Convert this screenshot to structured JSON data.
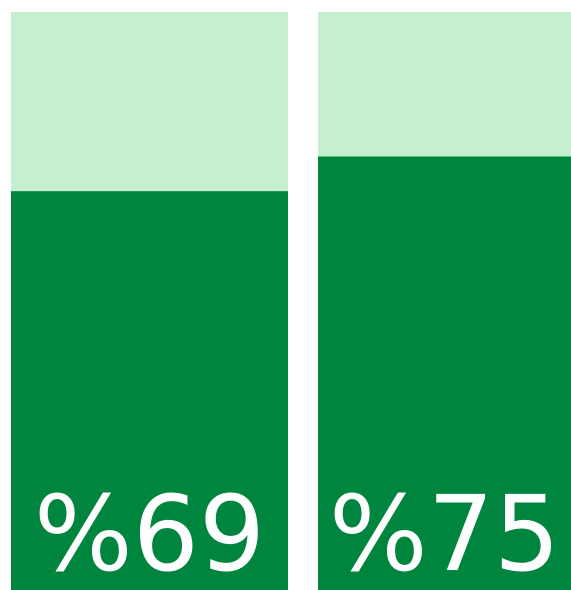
{
  "chart_data": {
    "type": "bar",
    "values": [
      69,
      75
    ],
    "value_labels": [
      "%69",
      "%75"
    ],
    "color": "#00853f",
    "track_color": "#c4efd0",
    "ylim": [
      0,
      100
    ]
  }
}
